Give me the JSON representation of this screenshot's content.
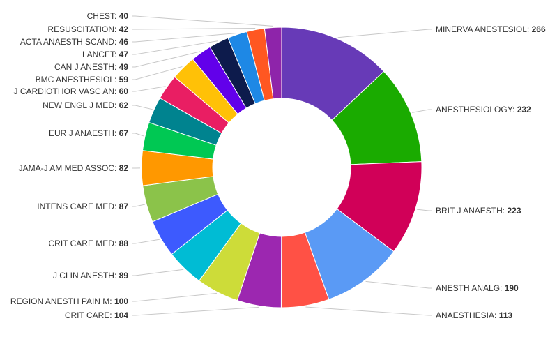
{
  "chart_data": {
    "type": "pie",
    "donut": true,
    "title": "",
    "categories": [
      "MINERVA ANESTESIOL",
      "ANESTHESIOLOGY",
      "BRIT J ANAESTH",
      "ANESTH ANALG",
      "ANAESTHESIA",
      "CRIT CARE",
      "REGION ANESTH PAIN M",
      "J CLIN ANESTH",
      "CRIT CARE MED",
      "INTENS CARE MED",
      "JAMA-J AM MED ASSOC",
      "EUR J ANAESTH",
      "NEW ENGL J MED",
      "J CARDIOTHOR VASC AN",
      "BMC ANESTHESIOL",
      "CAN J ANESTH",
      "LANCET",
      "ACTA ANAESTH SCAND",
      "RESUSCITATION",
      "CHEST"
    ],
    "values": [
      266,
      232,
      223,
      190,
      113,
      104,
      100,
      89,
      88,
      87,
      82,
      67,
      62,
      60,
      59,
      49,
      47,
      46,
      42,
      40
    ],
    "colors": [
      "#673ab7",
      "#1aab00",
      "#d10058",
      "#5a9af5",
      "#ff5145",
      "#9c27b0",
      "#cddc39",
      "#00bcd4",
      "#3d5afe",
      "#8bc34a",
      "#ff9800",
      "#00c853",
      "#00838f",
      "#e91e63",
      "#ffc107",
      "#6200ea",
      "#0d1b4c",
      "#1e88e5",
      "#ff5722",
      "#8e24aa"
    ],
    "legend": "none",
    "label_separator": ": "
  }
}
